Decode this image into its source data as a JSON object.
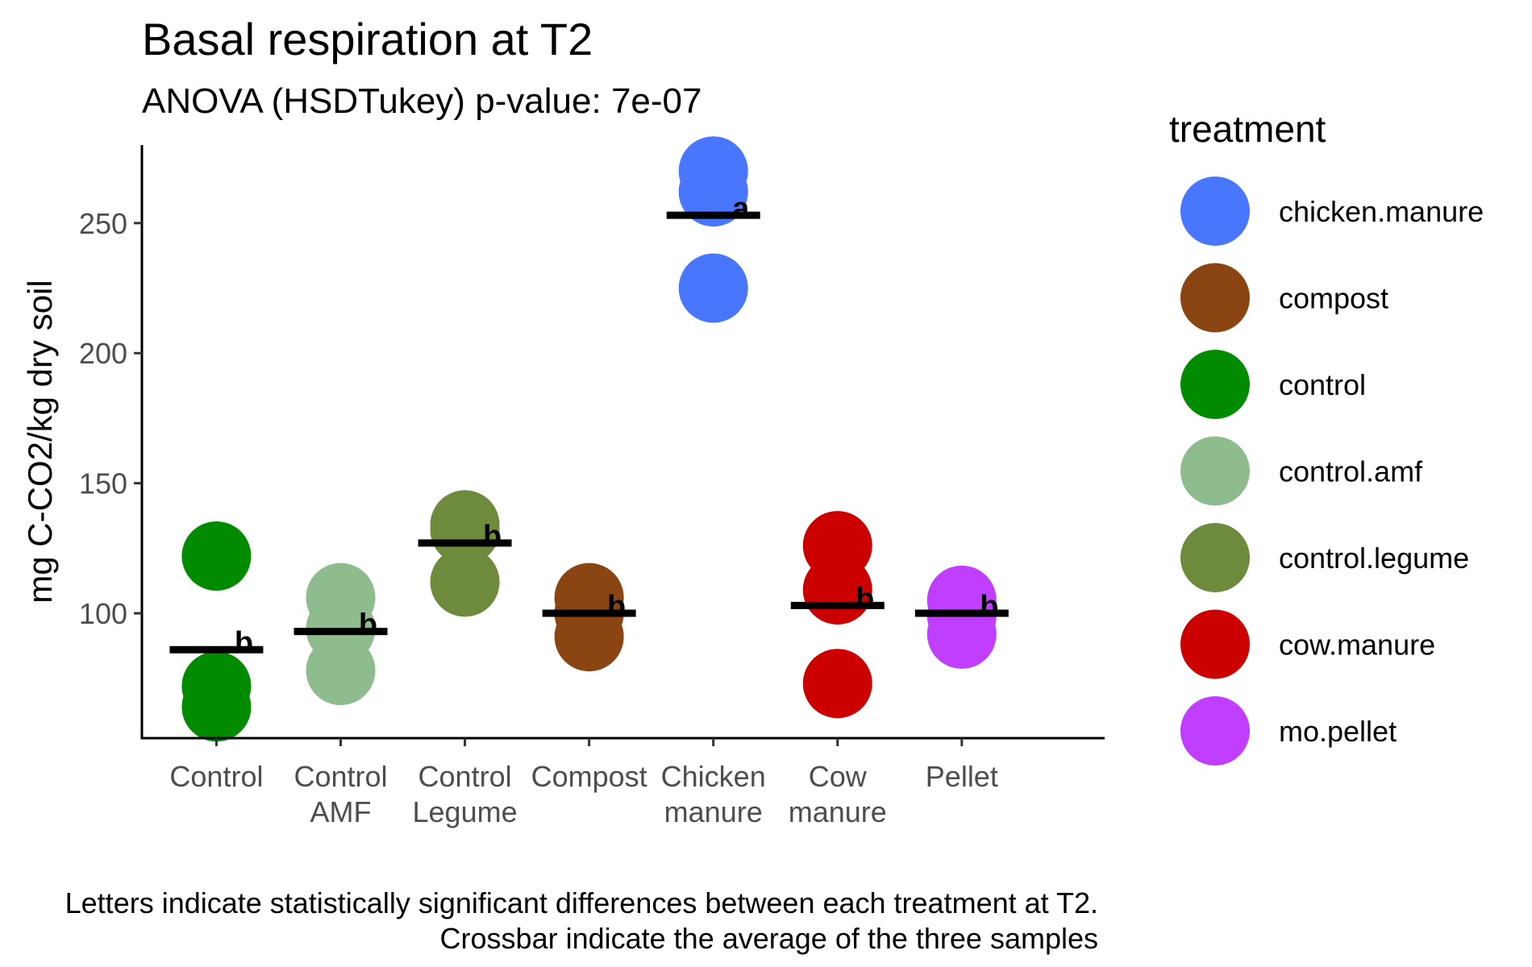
{
  "chart_data": {
    "type": "scatter",
    "title": "Basal respiration at T2",
    "subtitle": "ANOVA (HSDTukey) p-value: 7e-07",
    "xlabel": "",
    "ylabel": "mg C-CO2/kg dry soil",
    "ylim": [
      52,
      280
    ],
    "yticks": [
      100,
      150,
      200,
      250
    ],
    "grid": false,
    "legend": {
      "title": "treatment",
      "position": "right",
      "entries": [
        {
          "label": "chicken.manure",
          "color": "#4876FF"
        },
        {
          "label": "compost",
          "color": "#8B4513"
        },
        {
          "label": "control",
          "color": "#008B00"
        },
        {
          "label": "control.amf",
          "color": "#8FBC8F"
        },
        {
          "label": "control.legume",
          "color": "#6E8B3D"
        },
        {
          "label": "cow.manure",
          "color": "#CD0000"
        },
        {
          "label": "mo.pellet",
          "color": "#BF3EFF"
        }
      ]
    },
    "categories": [
      {
        "label": [
          "Control"
        ],
        "treatment": "control",
        "color": "#008B00",
        "points": [
          122,
          72,
          64
        ],
        "mean": 86,
        "letter": "b"
      },
      {
        "label": [
          "Control",
          "AMF"
        ],
        "treatment": "control.amf",
        "color": "#8FBC8F",
        "points": [
          106,
          94,
          78
        ],
        "mean": 93,
        "letter": "b"
      },
      {
        "label": [
          "Control",
          "Legume"
        ],
        "treatment": "control.legume",
        "color": "#6E8B3D",
        "points": [
          134,
          132,
          112
        ],
        "mean": 127,
        "letter": "b"
      },
      {
        "label": [
          "Compost"
        ],
        "treatment": "compost",
        "color": "#8B4513",
        "points": [
          106,
          100,
          91
        ],
        "mean": 100,
        "letter": "b"
      },
      {
        "label": [
          "Chicken",
          "manure"
        ],
        "treatment": "chicken.manure",
        "color": "#4876FF",
        "points": [
          270,
          262,
          225
        ],
        "mean": 253,
        "letter": "a"
      },
      {
        "label": [
          "Cow",
          "manure"
        ],
        "treatment": "cow.manure",
        "color": "#CD0000",
        "points": [
          126,
          109,
          73
        ],
        "mean": 103,
        "letter": "b"
      },
      {
        "label": [
          "Pellet"
        ],
        "treatment": "mo.pellet",
        "color": "#BF3EFF",
        "points": [
          105,
          99,
          92
        ],
        "mean": 100,
        "letter": "b"
      }
    ],
    "caption": [
      "Letters indicate statistically significant differences between each treatment at T2.",
      "Crossbar indicate the average of the three samples"
    ]
  }
}
